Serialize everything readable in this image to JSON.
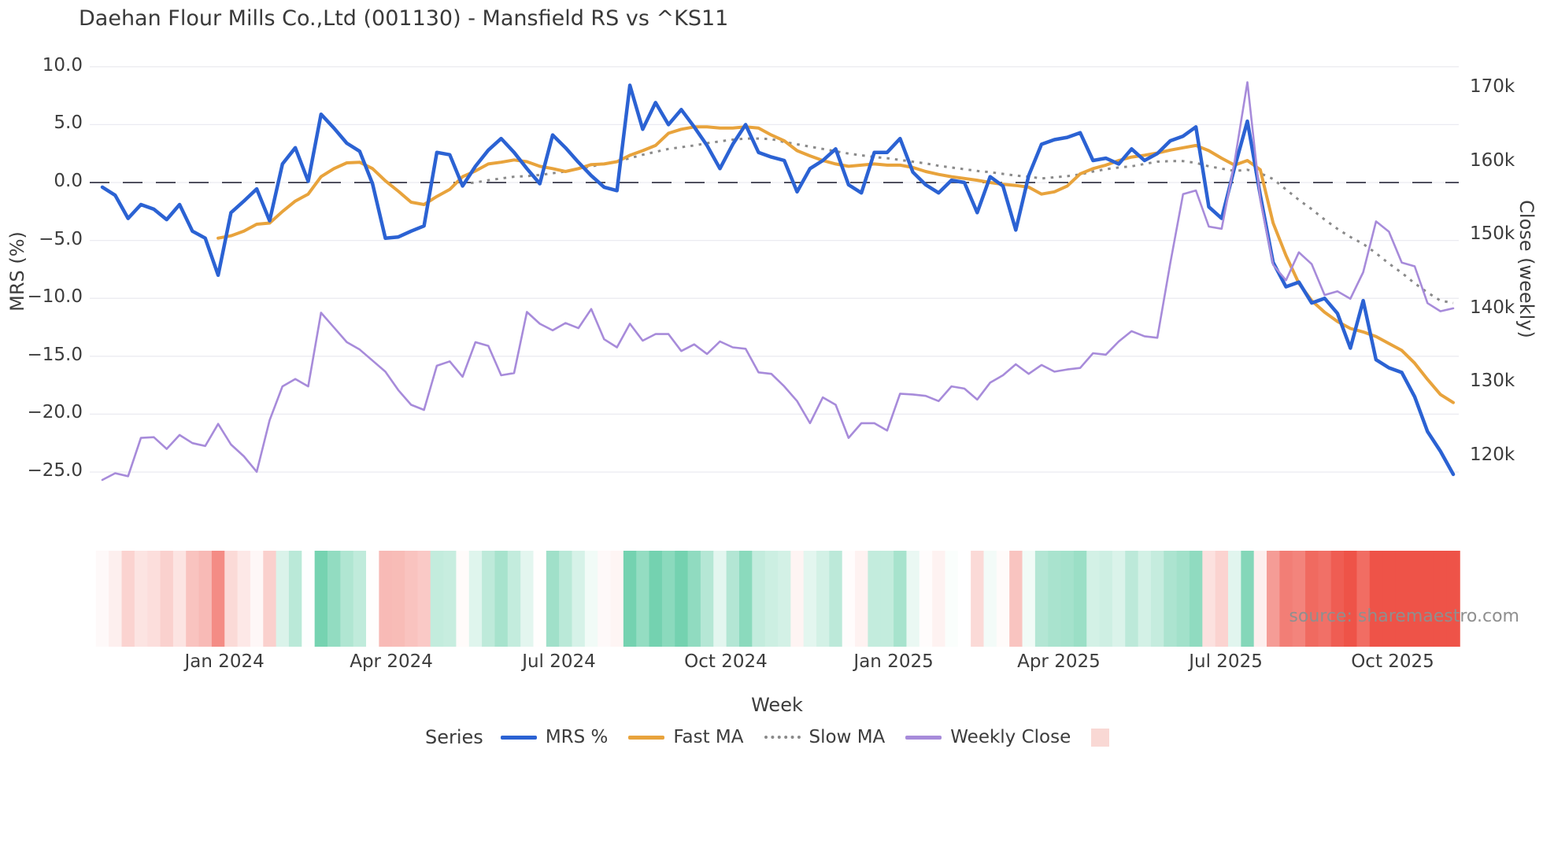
{
  "title": "Daehan Flour Mills Co.,Ltd (001130) - Mansfield RS vs ^KS11",
  "source_note": "source: sharemaestro.com",
  "legend": {
    "series_label": "Series",
    "items": [
      {
        "label": "MRS %",
        "swatch": "line",
        "color": "#2b62d3"
      },
      {
        "label": "Fast MA",
        "swatch": "line",
        "color": "#e8a33c"
      },
      {
        "label": "Slow MA",
        "swatch": "dotted",
        "color": "#8a8a8a"
      },
      {
        "label": "Weekly Close",
        "swatch": "line",
        "color": "#a78bda"
      },
      {
        "label": "",
        "swatch": "square",
        "color": "#f9d8d4"
      }
    ]
  },
  "chart_data": {
    "type": "line",
    "title": "Daehan Flour Mills Co.,Ltd (001130) - Mansfield RS vs ^KS11",
    "grid": "horizontal-only",
    "zero_reference_line": 0,
    "x_axis": {
      "title": "Week",
      "tick_labels": [
        "Jan 2024",
        "Apr 2024",
        "Jul 2024",
        "Oct 2024",
        "Jan 2025",
        "Apr 2025",
        "Jul 2025",
        "Oct 2025"
      ],
      "tick_week_positions": [
        9.49,
        22.46,
        35.49,
        48.46,
        61.5,
        74.34,
        87.32,
        100.29
      ],
      "n_weeks": 106
    },
    "y_left": {
      "title": "MRS (%)",
      "ticks": [
        10,
        5,
        0,
        -5,
        -10,
        -15,
        -20,
        -25
      ],
      "tick_labels": [
        "10.0",
        "5.0",
        "0.0",
        "−5.0",
        "−10.0",
        "−15.0",
        "−20.0",
        "−25.0"
      ],
      "range": [
        -27,
        11.5
      ]
    },
    "y_right": {
      "title": "Close (weekly)",
      "ticks": [
        170,
        160,
        150,
        140,
        130,
        120
      ],
      "tick_labels": [
        "170k",
        "160k",
        "150k",
        "140k",
        "130k",
        "120k"
      ],
      "range": [
        115,
        172
      ]
    },
    "series": [
      {
        "name": "MRS %",
        "axis": "left",
        "color": "#2b62d3",
        "style": "solid",
        "width": 4.5,
        "start_week": 0,
        "values": [
          -0.4,
          -1.1,
          -3.1,
          -1.9,
          -2.3,
          -3.2,
          -1.9,
          -4.2,
          -4.8,
          -8.0,
          -2.6,
          -1.6,
          -0.55,
          -3.3,
          1.6,
          3.0,
          0.1,
          5.9,
          4.7,
          3.4,
          2.7,
          -0.1,
          -4.8,
          -4.7,
          -4.2,
          -3.75,
          2.6,
          2.4,
          -0.3,
          1.4,
          2.8,
          3.8,
          2.6,
          1.2,
          -0.1,
          4.1,
          3.0,
          1.75,
          0.6,
          -0.4,
          -0.7,
          8.4,
          4.6,
          6.9,
          5.0,
          6.3,
          4.8,
          3.2,
          1.2,
          3.3,
          5.0,
          2.6,
          2.2,
          1.9,
          -0.8,
          1.2,
          1.9,
          2.9,
          -0.2,
          -0.9,
          2.6,
          2.6,
          3.8,
          0.9,
          -0.2,
          -0.9,
          0.2,
          0.0,
          -2.6,
          0.5,
          -0.3,
          -4.1,
          0.6,
          3.3,
          3.7,
          3.9,
          4.3,
          1.9,
          2.1,
          1.6,
          2.9,
          1.9,
          2.5,
          3.6,
          4.0,
          4.8,
          -2.1,
          -3.1,
          1.3,
          5.3,
          -1.1,
          -6.9,
          -9.0,
          -8.6,
          -10.4,
          -10.0,
          -11.3,
          -14.3,
          -10.2,
          -15.3,
          -16.0,
          -16.4,
          -18.5,
          -21.5,
          -23.2,
          -25.2
        ]
      },
      {
        "name": "Fast MA",
        "axis": "left",
        "color": "#e8a33c",
        "style": "solid",
        "width": 4,
        "start_week": 9,
        "values": [
          -4.8,
          -4.6,
          -4.2,
          -3.6,
          -3.5,
          -2.5,
          -1.6,
          -1.0,
          0.5,
          1.2,
          1.7,
          1.75,
          1.2,
          0.15,
          -0.75,
          -1.7,
          -1.9,
          -1.2,
          -0.6,
          0.5,
          1.0,
          1.6,
          1.75,
          1.95,
          1.8,
          1.4,
          1.2,
          0.95,
          1.2,
          1.55,
          1.6,
          1.8,
          2.35,
          2.75,
          3.2,
          4.25,
          4.6,
          4.8,
          4.8,
          4.7,
          4.7,
          4.8,
          4.7,
          4.1,
          3.6,
          2.75,
          2.3,
          1.9,
          1.6,
          1.4,
          1.5,
          1.6,
          1.5,
          1.5,
          1.3,
          0.95,
          0.7,
          0.5,
          0.35,
          0.2,
          0.0,
          -0.15,
          -0.25,
          -0.4,
          -1.0,
          -0.8,
          -0.3,
          0.75,
          1.2,
          1.5,
          1.9,
          2.2,
          2.35,
          2.55,
          2.8,
          3.0,
          3.2,
          2.75,
          2.1,
          1.5,
          1.9,
          1.1,
          -3.5,
          -6.3,
          -8.7,
          -10.2,
          -11.2,
          -12.0,
          -12.6,
          -12.9,
          -13.3,
          -13.9,
          -14.5,
          -15.6,
          -17.0,
          -18.3,
          -19.0
        ]
      },
      {
        "name": "Slow MA",
        "axis": "left",
        "color": "#8a8a8a",
        "style": "dotted",
        "width": 3,
        "start_week": 28,
        "values": [
          -0.1,
          0.0,
          0.2,
          0.35,
          0.5,
          0.55,
          0.65,
          0.8,
          0.95,
          1.2,
          1.4,
          1.6,
          1.85,
          2.1,
          2.4,
          2.65,
          2.9,
          3.05,
          3.2,
          3.4,
          3.55,
          3.7,
          3.8,
          3.8,
          3.75,
          3.5,
          3.3,
          3.1,
          2.9,
          2.7,
          2.5,
          2.35,
          2.2,
          2.1,
          1.95,
          1.8,
          1.65,
          1.45,
          1.3,
          1.15,
          1.0,
          0.9,
          0.75,
          0.6,
          0.5,
          0.35,
          0.45,
          0.55,
          0.7,
          0.95,
          1.15,
          1.3,
          1.4,
          1.6,
          1.8,
          1.85,
          1.85,
          1.7,
          1.4,
          1.2,
          1.0,
          1.1,
          0.8,
          0.3,
          -0.6,
          -1.5,
          -2.3,
          -3.2,
          -4.0,
          -4.7,
          -5.3,
          -6.1,
          -7.0,
          -7.8,
          -8.7,
          -9.5,
          -10.2,
          -10.4
        ]
      },
      {
        "name": "Weekly Close",
        "axis": "right",
        "color": "#a78bda",
        "style": "solid",
        "width": 2.6,
        "start_week": 0,
        "values": [
          116.8,
          117.7,
          117.3,
          122.5,
          122.6,
          121.0,
          122.9,
          121.8,
          121.4,
          124.4,
          121.6,
          120.0,
          117.9,
          124.9,
          129.5,
          130.5,
          129.5,
          139.5,
          137.5,
          135.5,
          134.5,
          133.0,
          131.5,
          129.0,
          127.0,
          126.3,
          132.3,
          132.9,
          130.8,
          135.5,
          135.0,
          131.0,
          131.3,
          139.6,
          138.0,
          137.1,
          138.1,
          137.4,
          140.0,
          135.9,
          134.8,
          138.0,
          135.7,
          136.6,
          136.6,
          134.3,
          135.2,
          133.9,
          135.6,
          134.8,
          134.6,
          131.4,
          131.2,
          129.5,
          127.5,
          124.5,
          128.0,
          127.0,
          122.5,
          124.5,
          124.5,
          123.5,
          128.5,
          128.4,
          128.2,
          127.5,
          129.5,
          129.2,
          127.7,
          130.0,
          131.0,
          132.5,
          131.2,
          132.4,
          131.5,
          131.8,
          132.0,
          134.0,
          133.8,
          135.6,
          137.0,
          136.3,
          136.1,
          146.2,
          155.6,
          156.1,
          151.2,
          150.9,
          160.0,
          170.8,
          154.8,
          146.0,
          143.9,
          147.7,
          146.1,
          141.9,
          142.4,
          141.4,
          145.0,
          151.9,
          150.5,
          146.3,
          145.8,
          140.8,
          139.7,
          140.1
        ]
      }
    ],
    "heatmap": {
      "description": "weekly heat strip below plot, one cell per week, colored by MRS % value",
      "derived_from": "MRS %",
      "negative_color": "#ee5348",
      "positive_color": "#74d2b0",
      "neutral_color": "#ffffff"
    }
  }
}
